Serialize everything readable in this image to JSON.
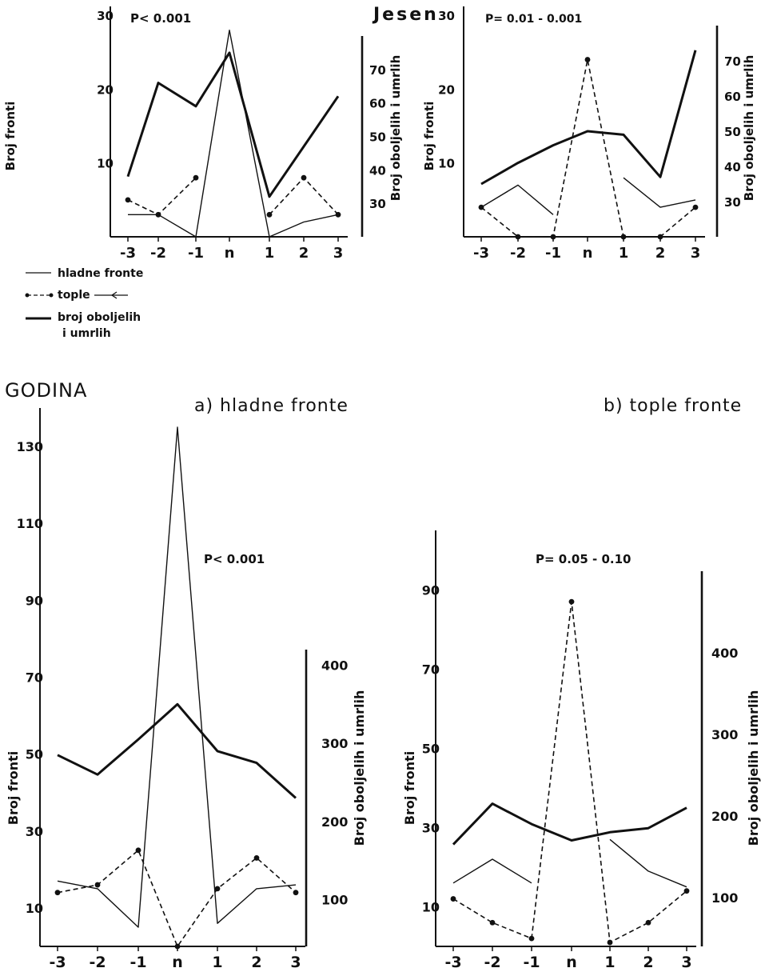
{
  "section_autumn": {
    "title": "Jesen"
  },
  "section_year": {
    "title": "GODINA"
  },
  "legend": {
    "cold_label": "hladne fronte",
    "warm_label": "tople",
    "sick_label_line1": "broj oboljelih",
    "sick_label_line2": "i umrlih"
  },
  "chart_data": [
    {
      "type": "line",
      "panel": "Jesen - left",
      "annotation": "P< 0.001",
      "categories": [
        "-3",
        "-2",
        "-1",
        "n",
        "1",
        "2",
        "3"
      ],
      "ylabel": "Broj fronti",
      "ylabel_right": "Broj oboljelih i umrlih",
      "yticks": [
        10,
        20,
        30
      ],
      "yticks_right": [
        30,
        40,
        50,
        60,
        70
      ],
      "ylim": [
        0,
        31
      ],
      "ylim_right": [
        20,
        80
      ],
      "series": [
        {
          "style": "thin",
          "axis": "left",
          "values": [
            3,
            3,
            0,
            28,
            0,
            2,
            3
          ]
        },
        {
          "style": "dashed",
          "axis": "left",
          "values": [
            5,
            3,
            8,
            null,
            3,
            8,
            3
          ]
        },
        {
          "style": "thick",
          "axis": "right",
          "values": [
            38,
            66,
            59,
            75,
            32,
            47,
            62
          ]
        }
      ]
    },
    {
      "type": "line",
      "panel": "Jesen - right",
      "annotation": "P= 0.01 - 0.001",
      "categories": [
        "-3",
        "-2",
        "-1",
        "n",
        "1",
        "2",
        "3"
      ],
      "ylabel": "Broj fronti",
      "ylabel_right": "Broj oboljelih i umrlih",
      "yticks": [
        10,
        20,
        30
      ],
      "yticks_right": [
        30,
        40,
        50,
        60,
        70
      ],
      "ylim": [
        0,
        31
      ],
      "ylim_right": [
        20,
        80
      ],
      "series": [
        {
          "style": "thin",
          "axis": "left",
          "values": [
            4,
            7,
            3,
            null,
            8,
            4,
            5
          ]
        },
        {
          "style": "dashed",
          "axis": "left",
          "values": [
            4,
            0,
            0,
            24,
            0,
            0,
            4
          ]
        },
        {
          "style": "thick",
          "axis": "right",
          "values": [
            35,
            41,
            46,
            50,
            49,
            37,
            73
          ]
        }
      ]
    },
    {
      "type": "line",
      "panel": "a) hladne fronte",
      "title": "a) hladne fronte",
      "annotation": "P< 0.001",
      "categories": [
        "-3",
        "-2",
        "-1",
        "n",
        "1",
        "2",
        "3"
      ],
      "ylabel": "Broj fronti",
      "ylabel_right": "Broj oboljelih i umrlih",
      "yticks": [
        10,
        30,
        50,
        70,
        90,
        110,
        130
      ],
      "yticks_right": [
        100,
        200,
        300,
        400
      ],
      "ylim": [
        0,
        140
      ],
      "ylim_right": [
        40,
        420
      ],
      "series": [
        {
          "style": "thin",
          "axis": "left",
          "values": [
            17,
            15,
            5,
            135,
            6,
            15,
            16
          ]
        },
        {
          "style": "dashed",
          "axis": "left",
          "values": [
            14,
            16,
            25,
            0,
            15,
            23,
            14
          ]
        },
        {
          "style": "thick",
          "axis": "right",
          "values": [
            285,
            260,
            305,
            350,
            290,
            275,
            230
          ]
        }
      ]
    },
    {
      "type": "line",
      "panel": "b) tople fronte",
      "title": "b) tople fronte",
      "annotation": "P= 0.05 - 0.10",
      "categories": [
        "-3",
        "-2",
        "-1",
        "n",
        "1",
        "2",
        "3"
      ],
      "ylabel": "Broj fronti",
      "ylabel_right": "Broj oboljelih i umrlih",
      "yticks": [
        10,
        30,
        50,
        70,
        90
      ],
      "yticks_right": [
        100,
        200,
        300,
        400
      ],
      "ylim": [
        0,
        105
      ],
      "ylim_right": [
        40,
        500
      ],
      "series": [
        {
          "style": "thin",
          "axis": "left",
          "values": [
            16,
            22,
            16,
            null,
            27,
            19,
            15
          ]
        },
        {
          "style": "dashed",
          "axis": "left",
          "values": [
            12,
            6,
            2,
            87,
            1,
            6,
            14
          ]
        },
        {
          "style": "thick",
          "axis": "right",
          "values": [
            165,
            215,
            190,
            170,
            180,
            185,
            210
          ]
        }
      ]
    }
  ]
}
